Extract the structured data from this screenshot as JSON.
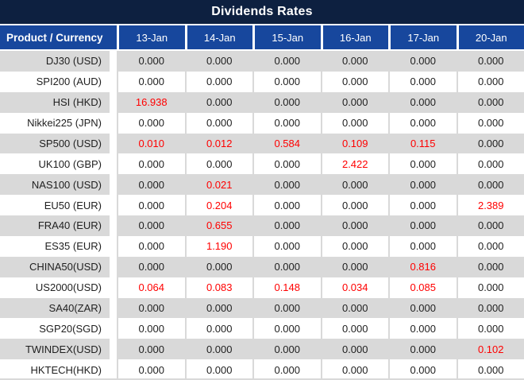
{
  "title": "Dividends Rates",
  "colors": {
    "title_bar_bg": "#0d2040",
    "header_bg": "#17479d",
    "header_text": "#ffffff",
    "row_alt_bg": "#d9d9d9",
    "row_bg": "#ffffff",
    "text": "#1f1f1f",
    "highlight_red": "#ff0000"
  },
  "chart_data": {
    "type": "table",
    "title": "Dividends Rates",
    "label_column_header": "Product / Currency",
    "date_columns": [
      "13-Jan",
      "14-Jan",
      "15-Jan",
      "16-Jan",
      "17-Jan",
      "20-Jan"
    ],
    "rows": [
      {
        "product": "DJ30 (USD)",
        "values": [
          "0.000",
          "0.000",
          "0.000",
          "0.000",
          "0.000",
          "0.000"
        ],
        "red": [
          false,
          false,
          false,
          false,
          false,
          false
        ]
      },
      {
        "product": "SPI200 (AUD)",
        "values": [
          "0.000",
          "0.000",
          "0.000",
          "0.000",
          "0.000",
          "0.000"
        ],
        "red": [
          false,
          false,
          false,
          false,
          false,
          false
        ]
      },
      {
        "product": "HSI (HKD)",
        "values": [
          "16.938",
          "0.000",
          "0.000",
          "0.000",
          "0.000",
          "0.000"
        ],
        "red": [
          true,
          false,
          false,
          false,
          false,
          false
        ]
      },
      {
        "product": "Nikkei225 (JPN)",
        "values": [
          "0.000",
          "0.000",
          "0.000",
          "0.000",
          "0.000",
          "0.000"
        ],
        "red": [
          false,
          false,
          false,
          false,
          false,
          false
        ]
      },
      {
        "product": "SP500 (USD)",
        "values": [
          "0.010",
          "0.012",
          "0.584",
          "0.109",
          "0.115",
          "0.000"
        ],
        "red": [
          true,
          true,
          true,
          true,
          true,
          false
        ]
      },
      {
        "product": "UK100 (GBP)",
        "values": [
          "0.000",
          "0.000",
          "0.000",
          "2.422",
          "0.000",
          "0.000"
        ],
        "red": [
          false,
          false,
          false,
          true,
          false,
          false
        ]
      },
      {
        "product": "NAS100 (USD)",
        "values": [
          "0.000",
          "0.021",
          "0.000",
          "0.000",
          "0.000",
          "0.000"
        ],
        "red": [
          false,
          true,
          false,
          false,
          false,
          false
        ]
      },
      {
        "product": "EU50 (EUR)",
        "values": [
          "0.000",
          "0.204",
          "0.000",
          "0.000",
          "0.000",
          "2.389"
        ],
        "red": [
          false,
          true,
          false,
          false,
          false,
          true
        ]
      },
      {
        "product": "FRA40 (EUR)",
        "values": [
          "0.000",
          "0.655",
          "0.000",
          "0.000",
          "0.000",
          "0.000"
        ],
        "red": [
          false,
          true,
          false,
          false,
          false,
          false
        ]
      },
      {
        "product": "ES35 (EUR)",
        "values": [
          "0.000",
          "1.190",
          "0.000",
          "0.000",
          "0.000",
          "0.000"
        ],
        "red": [
          false,
          true,
          false,
          false,
          false,
          false
        ]
      },
      {
        "product": "CHINA50(USD)",
        "values": [
          "0.000",
          "0.000",
          "0.000",
          "0.000",
          "0.816",
          "0.000"
        ],
        "red": [
          false,
          false,
          false,
          false,
          true,
          false
        ]
      },
      {
        "product": "US2000(USD)",
        "values": [
          "0.064",
          "0.083",
          "0.148",
          "0.034",
          "0.085",
          "0.000"
        ],
        "red": [
          true,
          true,
          true,
          true,
          true,
          false
        ]
      },
      {
        "product": "SA40(ZAR)",
        "values": [
          "0.000",
          "0.000",
          "0.000",
          "0.000",
          "0.000",
          "0.000"
        ],
        "red": [
          false,
          false,
          false,
          false,
          false,
          false
        ]
      },
      {
        "product": "SGP20(SGD)",
        "values": [
          "0.000",
          "0.000",
          "0.000",
          "0.000",
          "0.000",
          "0.000"
        ],
        "red": [
          false,
          false,
          false,
          false,
          false,
          false
        ]
      },
      {
        "product": "TWINDEX(USD)",
        "values": [
          "0.000",
          "0.000",
          "0.000",
          "0.000",
          "0.000",
          "0.102"
        ],
        "red": [
          false,
          false,
          false,
          false,
          false,
          true
        ]
      },
      {
        "product": "HKTECH(HKD)",
        "values": [
          "0.000",
          "0.000",
          "0.000",
          "0.000",
          "0.000",
          "0.000"
        ],
        "red": [
          false,
          false,
          false,
          false,
          false,
          false
        ]
      }
    ]
  }
}
